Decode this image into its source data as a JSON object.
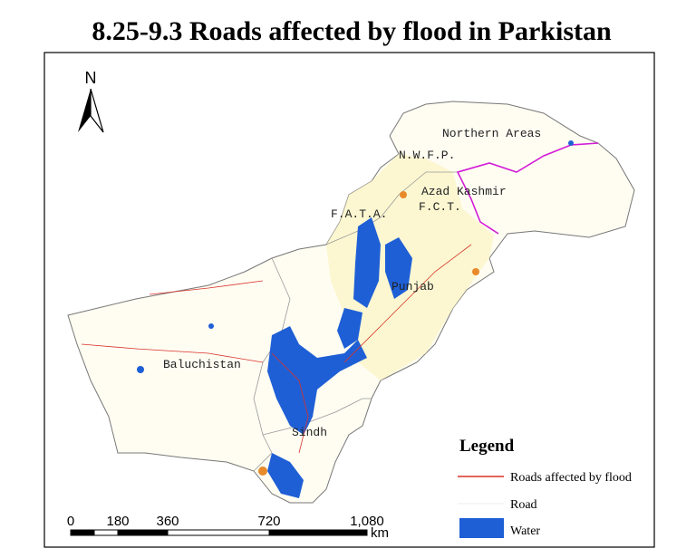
{
  "title": "8.25-9.3 Roads affected by flood in Parkistan",
  "north_arrow": {
    "label": "N"
  },
  "regions": [
    {
      "label": "Northern Areas"
    },
    {
      "label": "N.W.F.P."
    },
    {
      "label": "Azad Kashmir"
    },
    {
      "label": "F.C.T."
    },
    {
      "label": "F.A.T.A."
    },
    {
      "label": "Punjab"
    },
    {
      "label": "Baluchistan"
    },
    {
      "label": "Sindh"
    }
  ],
  "legend": {
    "title": "Legend",
    "items": [
      {
        "label": "Roads affected by flood"
      },
      {
        "label": "Road"
      },
      {
        "label": "Water"
      }
    ]
  },
  "scale_bar": {
    "labels": [
      "0",
      "180",
      "360",
      "720",
      "1,080"
    ],
    "unit": "km"
  }
}
